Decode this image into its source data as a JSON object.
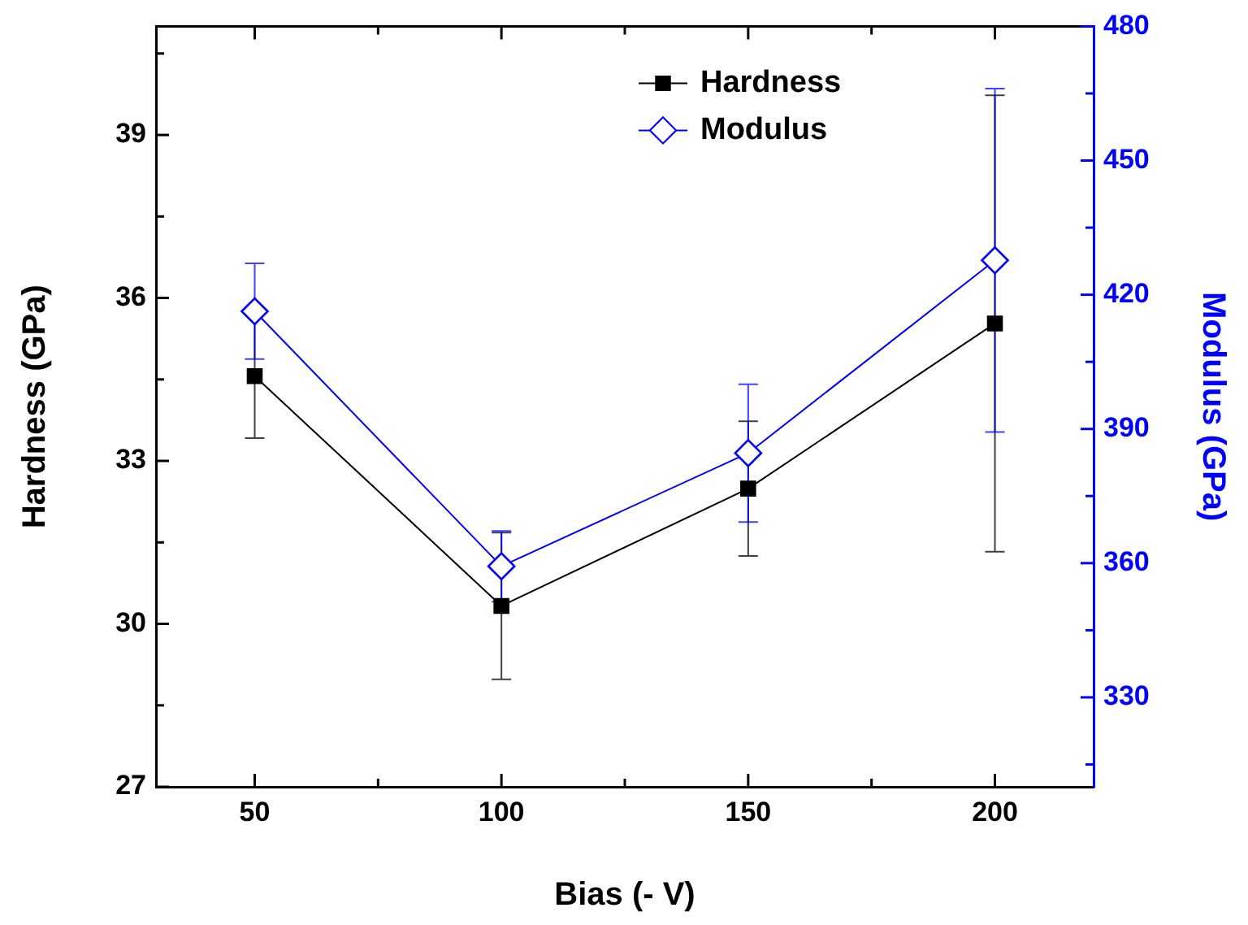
{
  "chart_data": {
    "type": "line",
    "xlabel": "Bias (- V)",
    "ylabel": "Hardness (GPa)",
    "y2label": "Modulus (GPa)",
    "x": [
      50,
      100,
      150,
      200
    ],
    "series": [
      {
        "name": "Hardness",
        "color": "#000000",
        "marker": "square",
        "values": [
          34.56,
          30.33,
          32.49,
          35.53
        ],
        "errors": [
          1.14,
          1.35,
          1.24,
          4.2
        ]
      },
      {
        "name": "Modulus",
        "color": "#0000ff",
        "marker": "diamond",
        "axis": "y2",
        "values": [
          416.3,
          359.3,
          384.6,
          427.7
        ],
        "errors": [
          10.7,
          7.9,
          15.4,
          38.4
        ]
      }
    ],
    "xlim": [
      30,
      220
    ],
    "xticks": [
      50,
      {
        "value": 75,
        "label": null
      },
      100,
      {
        "value": 125,
        "label": null
      },
      150,
      {
        "value": 175,
        "label": null
      },
      200
    ],
    "ylim": [
      27,
      41
    ],
    "yticks": [
      27,
      {
        "value": 28.5,
        "label": null
      },
      30,
      {
        "value": 31.5,
        "label": null
      },
      33,
      {
        "value": 34.5,
        "label": null
      },
      36,
      {
        "value": 37.5,
        "label": null
      },
      39,
      {
        "value": 40.5,
        "label": null
      }
    ],
    "y2lim": [
      310,
      480
    ],
    "y2ticks": [
      {
        "value": 315,
        "label": null
      },
      330,
      {
        "value": 345,
        "label": null
      },
      360,
      {
        "value": 375,
        "label": null
      },
      390,
      {
        "value": 405,
        "label": null
      },
      420,
      {
        "value": 435,
        "label": null
      },
      450,
      {
        "value": 465,
        "label": null
      },
      480
    ],
    "legend": "top right",
    "grid": false
  }
}
